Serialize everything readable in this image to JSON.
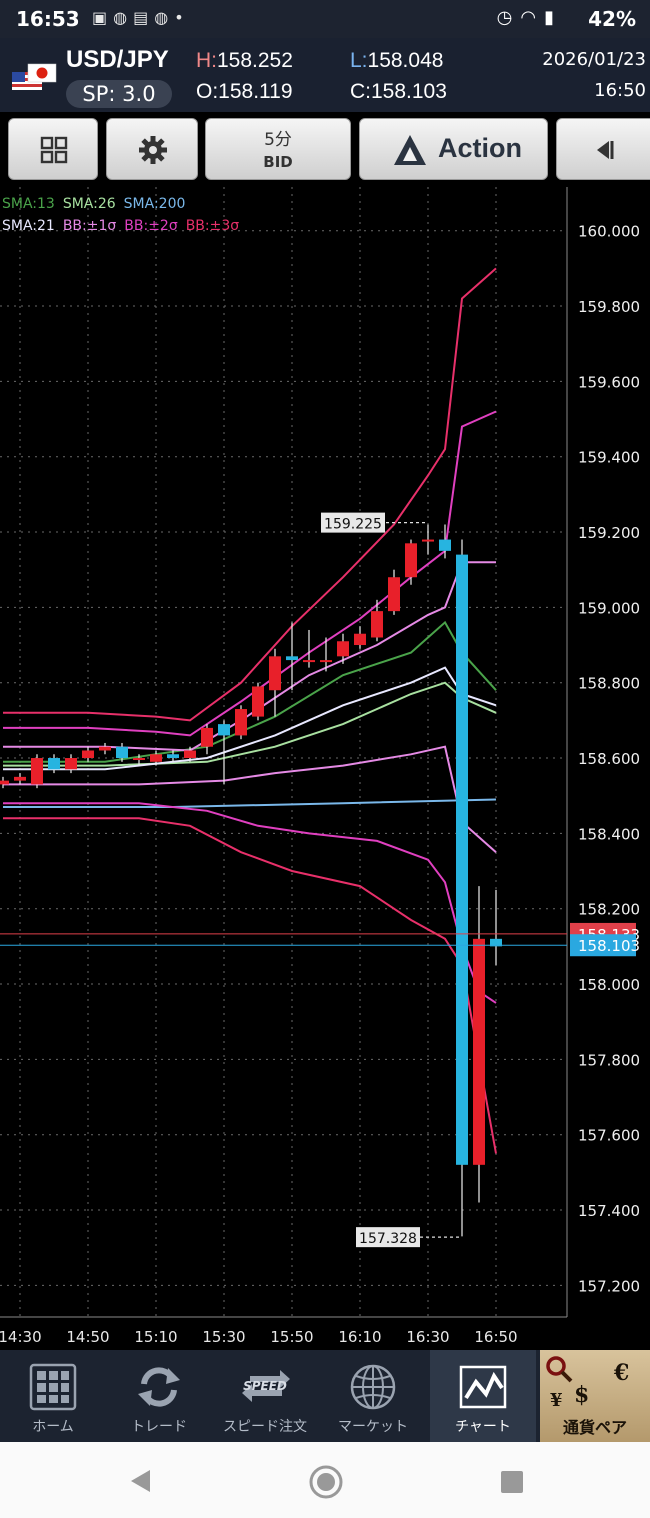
{
  "status": {
    "time": "16:53",
    "battery": "42%",
    "left_icons": [
      "uniqlo-icon",
      "baseball-icon",
      "document-icon",
      "baseball-icon",
      "dot-icon"
    ],
    "right_icons": [
      "alarm-icon",
      "wifi-icon",
      "battery-icon"
    ]
  },
  "quote": {
    "pair": "USD/JPY",
    "spread": "SP: 3.0",
    "high_label": "H:",
    "high": "158.252",
    "low_label": "L:",
    "low": "158.048",
    "open_label": "O:",
    "open": "158.119",
    "close_label": "C:",
    "close": "158.103",
    "date": "2026/01/23",
    "clock": "16:50"
  },
  "toolbar": {
    "timeframe": "5分",
    "price_side": "BID",
    "action_label": "Action",
    "icons": [
      "grid-icon",
      "gear-icon",
      "action-logo-icon",
      "collapse-left-icon"
    ]
  },
  "indicators": {
    "row1": [
      {
        "label": "SMA:13",
        "color": "#4aa34a"
      },
      {
        "label": "SMA:26",
        "color": "#a8e0a0"
      },
      {
        "label": "SMA:200",
        "color": "#7ab8ea"
      }
    ],
    "row2": [
      {
        "label": "SMA:21",
        "color": "#e8e8ff"
      },
      {
        "label": "BB:±1σ",
        "color": "#e58ae5"
      },
      {
        "label": "BB:±2σ",
        "color": "#e040c0"
      },
      {
        "label": "BB:±3σ",
        "color": "#e8306a"
      }
    ]
  },
  "chart_data": {
    "type": "candlestick",
    "timeframe": "5分",
    "y_ticks": [
      160.0,
      159.8,
      159.6,
      159.4,
      159.2,
      159.0,
      158.8,
      158.6,
      158.4,
      158.2,
      158.0,
      157.8,
      157.6,
      157.4,
      157.2
    ],
    "y_tick_labels": [
      "160.000",
      "159.800",
      "159.600",
      "159.400",
      "159.200",
      "159.000",
      "158.800",
      "158.600",
      "158.400",
      "158.200",
      "158.000",
      "157.800",
      "157.600",
      "157.400",
      "157.200"
    ],
    "ylim": [
      157.116,
      160.116
    ],
    "x_tick_labels": [
      "14:30",
      "14:50",
      "15:10",
      "15:30",
      "15:50",
      "16:10",
      "16:30",
      "16:50"
    ],
    "candles": [
      {
        "t": "14:25",
        "o": 158.53,
        "h": 158.55,
        "l": 158.52,
        "c": 158.54
      },
      {
        "t": "14:30",
        "o": 158.54,
        "h": 158.56,
        "l": 158.53,
        "c": 158.55
      },
      {
        "t": "14:35",
        "o": 158.53,
        "h": 158.61,
        "l": 158.52,
        "c": 158.6
      },
      {
        "t": "14:40",
        "o": 158.6,
        "h": 158.61,
        "l": 158.56,
        "c": 158.57
      },
      {
        "t": "14:45",
        "o": 158.57,
        "h": 158.61,
        "l": 158.56,
        "c": 158.6
      },
      {
        "t": "14:50",
        "o": 158.6,
        "h": 158.63,
        "l": 158.59,
        "c": 158.62
      },
      {
        "t": "14:55",
        "o": 158.62,
        "h": 158.64,
        "l": 158.61,
        "c": 158.63
      },
      {
        "t": "15:00",
        "o": 158.63,
        "h": 158.64,
        "l": 158.59,
        "c": 158.6
      },
      {
        "t": "15:05",
        "o": 158.6,
        "h": 158.61,
        "l": 158.58,
        "c": 158.6
      },
      {
        "t": "15:10",
        "o": 158.59,
        "h": 158.62,
        "l": 158.58,
        "c": 158.61
      },
      {
        "t": "15:15",
        "o": 158.61,
        "h": 158.62,
        "l": 158.59,
        "c": 158.6
      },
      {
        "t": "15:20",
        "o": 158.6,
        "h": 158.63,
        "l": 158.59,
        "c": 158.62
      },
      {
        "t": "15:25",
        "o": 158.63,
        "h": 158.69,
        "l": 158.61,
        "c": 158.68
      },
      {
        "t": "15:30",
        "o": 158.69,
        "h": 158.7,
        "l": 158.53,
        "c": 158.66
      },
      {
        "t": "15:35",
        "o": 158.66,
        "h": 158.74,
        "l": 158.65,
        "c": 158.73
      },
      {
        "t": "15:40",
        "o": 158.71,
        "h": 158.8,
        "l": 158.7,
        "c": 158.79
      },
      {
        "t": "15:45",
        "o": 158.78,
        "h": 158.89,
        "l": 158.71,
        "c": 158.87
      },
      {
        "t": "15:50",
        "o": 158.87,
        "h": 158.96,
        "l": 158.78,
        "c": 158.86
      },
      {
        "t": "15:55",
        "o": 158.86,
        "h": 158.94,
        "l": 158.84,
        "c": 158.86
      },
      {
        "t": "16:00",
        "o": 158.86,
        "h": 158.92,
        "l": 158.83,
        "c": 158.86
      },
      {
        "t": "16:05",
        "o": 158.87,
        "h": 158.93,
        "l": 158.85,
        "c": 158.91
      },
      {
        "t": "16:10",
        "o": 158.9,
        "h": 158.95,
        "l": 158.89,
        "c": 158.93
      },
      {
        "t": "16:15",
        "o": 158.92,
        "h": 159.02,
        "l": 158.91,
        "c": 158.99
      },
      {
        "t": "16:20",
        "o": 158.99,
        "h": 159.1,
        "l": 158.98,
        "c": 159.08
      },
      {
        "t": "16:25",
        "o": 159.08,
        "h": 159.18,
        "l": 159.06,
        "c": 159.17
      },
      {
        "t": "16:30",
        "o": 159.18,
        "h": 159.22,
        "l": 159.14,
        "c": 159.18
      },
      {
        "t": "16:35",
        "o": 159.18,
        "h": 159.22,
        "l": 159.13,
        "c": 159.15
      },
      {
        "t": "16:40",
        "o": 159.14,
        "h": 159.18,
        "l": 157.33,
        "c": 157.52
      },
      {
        "t": "16:45",
        "o": 157.52,
        "h": 158.26,
        "l": 157.42,
        "c": 158.12
      },
      {
        "t": "16:50",
        "o": 158.12,
        "h": 158.25,
        "l": 158.05,
        "c": 158.1
      }
    ],
    "high_marker": "159.225",
    "low_marker": "157.328",
    "ask_line": {
      "label": "158.133",
      "value": 158.133,
      "color": "#e0404a"
    },
    "bid_line": {
      "label": "158.103",
      "value": 158.103,
      "color": "#2aa8e0"
    },
    "bullish_color": "#e8202a",
    "bearish_color": "#27b4e0",
    "grid": true,
    "series": [
      {
        "name": "SMA:200",
        "color": "#7ab8ea",
        "points": [
          [
            0,
            158.47
          ],
          [
            10,
            158.47
          ],
          [
            20,
            158.48
          ],
          [
            29,
            158.49
          ]
        ]
      },
      {
        "name": "SMA:26",
        "color": "#a8e0a0",
        "points": [
          [
            0,
            158.58
          ],
          [
            6,
            158.58
          ],
          [
            12,
            158.59
          ],
          [
            16,
            158.63
          ],
          [
            20,
            158.69
          ],
          [
            24,
            158.77
          ],
          [
            26,
            158.8
          ],
          [
            27,
            158.76
          ],
          [
            29,
            158.72
          ]
        ]
      },
      {
        "name": "SMA:21",
        "color": "#e8e8ff",
        "points": [
          [
            0,
            158.57
          ],
          [
            6,
            158.57
          ],
          [
            12,
            158.6
          ],
          [
            16,
            158.66
          ],
          [
            20,
            158.74
          ],
          [
            24,
            158.8
          ],
          [
            26,
            158.84
          ],
          [
            27,
            158.77
          ],
          [
            29,
            158.74
          ]
        ]
      },
      {
        "name": "SMA:13",
        "color": "#4aa34a",
        "points": [
          [
            0,
            158.59
          ],
          [
            6,
            158.59
          ],
          [
            12,
            158.63
          ],
          [
            16,
            158.71
          ],
          [
            20,
            158.82
          ],
          [
            24,
            158.88
          ],
          [
            26,
            158.96
          ],
          [
            27,
            158.88
          ],
          [
            29,
            158.78
          ]
        ]
      },
      {
        "name": "BB:+1σ",
        "color": "#e58ae5",
        "points": [
          [
            0,
            158.63
          ],
          [
            6,
            158.63
          ],
          [
            11,
            158.62
          ],
          [
            14,
            158.7
          ],
          [
            18,
            158.82
          ],
          [
            22,
            158.9
          ],
          [
            25,
            158.98
          ],
          [
            26,
            159.0
          ],
          [
            27,
            159.12
          ],
          [
            29,
            159.12
          ]
        ]
      },
      {
        "name": "BB:-1σ",
        "color": "#e58ae5",
        "points": [
          [
            0,
            158.53
          ],
          [
            8,
            158.53
          ],
          [
            13,
            158.54
          ],
          [
            16,
            158.56
          ],
          [
            20,
            158.58
          ],
          [
            24,
            158.61
          ],
          [
            26,
            158.63
          ],
          [
            27,
            158.43
          ],
          [
            29,
            158.35
          ]
        ]
      },
      {
        "name": "BB:+2σ",
        "color": "#e040c0",
        "points": [
          [
            0,
            158.68
          ],
          [
            5,
            158.68
          ],
          [
            9,
            158.67
          ],
          [
            11,
            158.66
          ],
          [
            14,
            158.75
          ],
          [
            18,
            158.88
          ],
          [
            21,
            158.97
          ],
          [
            24,
            159.08
          ],
          [
            26,
            159.15
          ],
          [
            27,
            159.48
          ],
          [
            29,
            159.52
          ]
        ]
      },
      {
        "name": "BB:-2σ",
        "color": "#e040c0",
        "points": [
          [
            0,
            158.48
          ],
          [
            8,
            158.48
          ],
          [
            12,
            158.46
          ],
          [
            15,
            158.42
          ],
          [
            18,
            158.4
          ],
          [
            22,
            158.38
          ],
          [
            25,
            158.33
          ],
          [
            26,
            158.27
          ],
          [
            27,
            158.1
          ],
          [
            28,
            157.98
          ],
          [
            29,
            157.95
          ]
        ]
      },
      {
        "name": "BB:+3σ",
        "color": "#e8306a",
        "points": [
          [
            0,
            158.72
          ],
          [
            5,
            158.72
          ],
          [
            9,
            158.71
          ],
          [
            11,
            158.7
          ],
          [
            14,
            158.8
          ],
          [
            17,
            158.95
          ],
          [
            20,
            159.08
          ],
          [
            23,
            159.22
          ],
          [
            25,
            159.35
          ],
          [
            26,
            159.42
          ],
          [
            27,
            159.82
          ],
          [
            29,
            159.9
          ]
        ]
      },
      {
        "name": "BB:-3σ",
        "color": "#e8306a",
        "points": [
          [
            0,
            158.44
          ],
          [
            8,
            158.44
          ],
          [
            11,
            158.42
          ],
          [
            14,
            158.35
          ],
          [
            17,
            158.3
          ],
          [
            21,
            158.26
          ],
          [
            24,
            158.17
          ],
          [
            26,
            158.12
          ],
          [
            27,
            158.05
          ],
          [
            28,
            157.8
          ],
          [
            29,
            157.55
          ]
        ]
      }
    ]
  },
  "tabs": [
    {
      "label": "ホーム",
      "icon": "home-grid-icon"
    },
    {
      "label": "トレード",
      "icon": "trade-arrows-icon"
    },
    {
      "label": "スピード注文",
      "icon": "speed-icon",
      "badge": "SPEED"
    },
    {
      "label": "マーケット",
      "icon": "globe-icon"
    },
    {
      "label": "チャート",
      "icon": "chart-icon",
      "active": true
    },
    {
      "label": "通貨ペア",
      "icon": "currency-icon",
      "symbols": [
        "€",
        "$",
        "¥"
      ]
    }
  ],
  "nav": [
    "back-icon",
    "home-icon",
    "recents-icon"
  ]
}
